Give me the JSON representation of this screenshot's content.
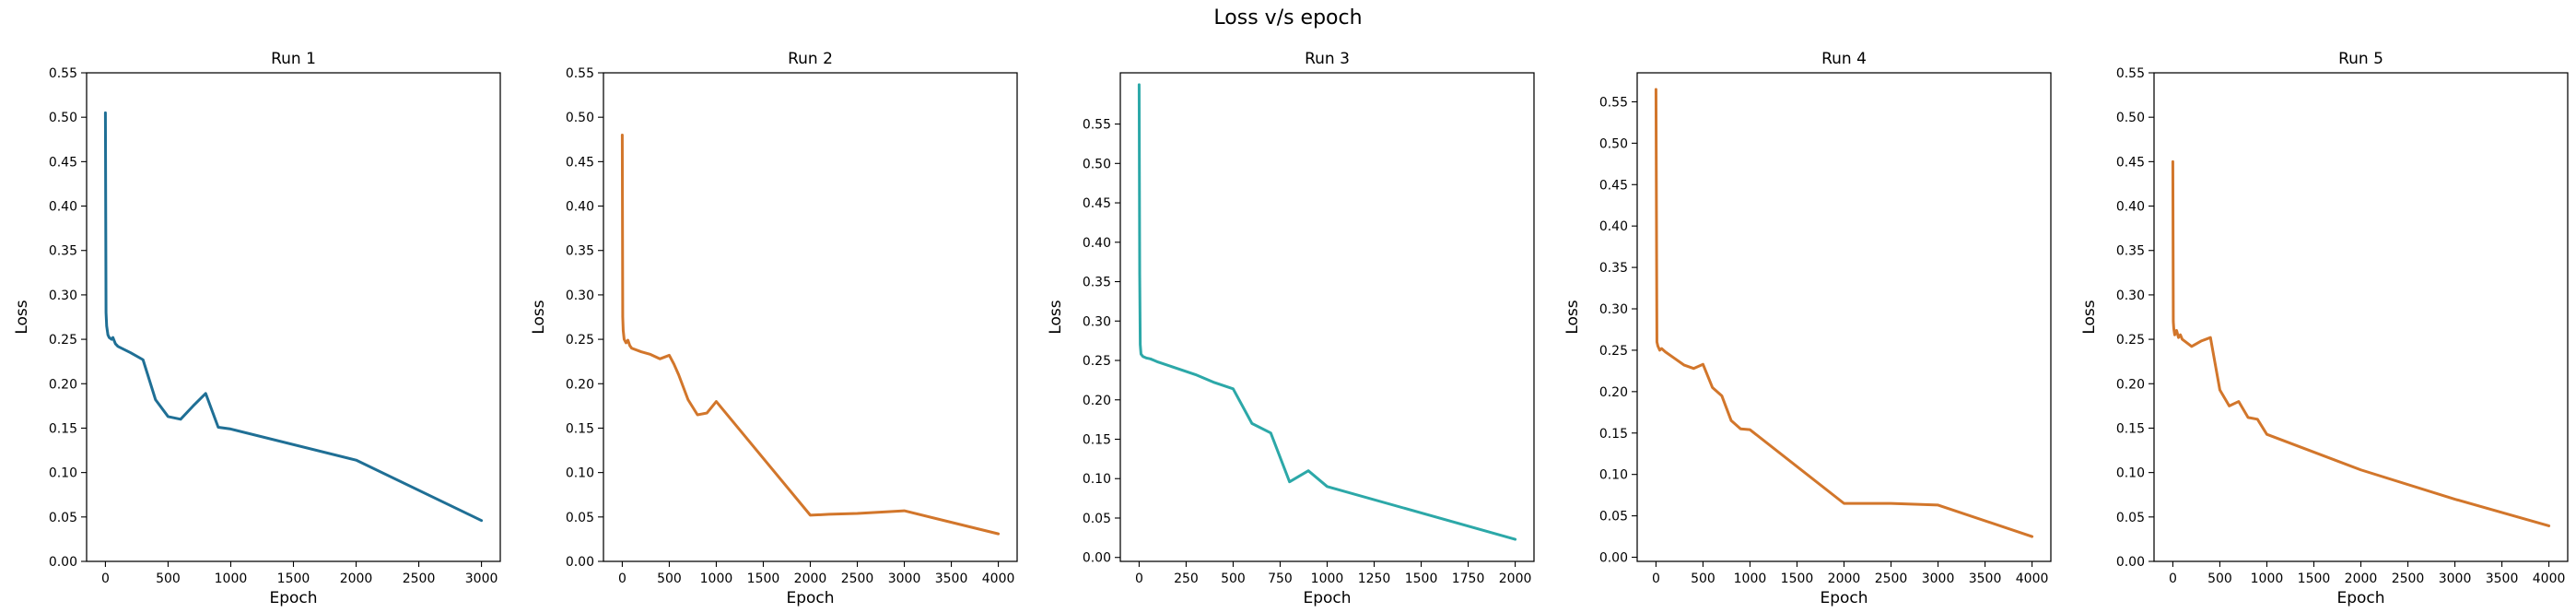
{
  "figure": {
    "title": "Loss v/s epoch"
  },
  "chart_data": [
    {
      "type": "line",
      "title": "Run 1",
      "xlabel": "Epoch",
      "ylabel": "Loss",
      "color": "#1f6f95",
      "xlim": [
        -150,
        3150
      ],
      "ylim": [
        0.0,
        0.55
      ],
      "xticks": [
        0,
        500,
        1000,
        1500,
        2000,
        2500,
        3000
      ],
      "yticks": [
        0.0,
        0.05,
        0.1,
        0.15,
        0.2,
        0.25,
        0.3,
        0.35,
        0.4,
        0.45,
        0.5,
        0.55
      ],
      "xticklabels": [
        "0",
        "500",
        "1000",
        "1500",
        "2000",
        "2500",
        "3000"
      ],
      "yticklabels": [
        "0.00",
        "0.05",
        "0.10",
        "0.15",
        "0.20",
        "0.25",
        "0.30",
        "0.35",
        "0.40",
        "0.45",
        "0.50",
        "0.55"
      ],
      "x": [
        0,
        5,
        10,
        20,
        30,
        50,
        60,
        80,
        100,
        200,
        300,
        400,
        500,
        600,
        700,
        800,
        900,
        1000,
        2000,
        3000
      ],
      "y": [
        0.505,
        0.28,
        0.265,
        0.255,
        0.252,
        0.25,
        0.252,
        0.245,
        0.242,
        0.235,
        0.227,
        0.182,
        0.163,
        0.16,
        0.175,
        0.189,
        0.151,
        0.149,
        0.114,
        0.046
      ]
    },
    {
      "type": "line",
      "title": "Run 2",
      "xlabel": "Epoch",
      "ylabel": "Loss",
      "color": "#d2762b",
      "xlim": [
        -200,
        4200
      ],
      "ylim": [
        0.0,
        0.55
      ],
      "xticks": [
        0,
        500,
        1000,
        1500,
        2000,
        2500,
        3000,
        3500,
        4000
      ],
      "yticks": [
        0.0,
        0.05,
        0.1,
        0.15,
        0.2,
        0.25,
        0.3,
        0.35,
        0.4,
        0.45,
        0.5,
        0.55
      ],
      "xticklabels": [
        "0",
        "500",
        "1000",
        "1500",
        "2000",
        "2500",
        "3000",
        "3500",
        "4000"
      ],
      "yticklabels": [
        "0.00",
        "0.05",
        "0.10",
        "0.15",
        "0.20",
        "0.25",
        "0.30",
        "0.35",
        "0.40",
        "0.45",
        "0.50",
        "0.55"
      ],
      "x": [
        0,
        5,
        10,
        20,
        40,
        60,
        80,
        100,
        200,
        300,
        400,
        500,
        550,
        600,
        700,
        800,
        900,
        1000,
        2000,
        2200,
        2500,
        3000,
        4000
      ],
      "y": [
        0.48,
        0.275,
        0.26,
        0.25,
        0.246,
        0.249,
        0.243,
        0.24,
        0.236,
        0.233,
        0.228,
        0.232,
        0.222,
        0.21,
        0.182,
        0.165,
        0.167,
        0.18,
        0.052,
        0.053,
        0.054,
        0.057,
        0.031
      ]
    },
    {
      "type": "line",
      "title": "Run 3",
      "xlabel": "Epoch",
      "ylabel": "Loss",
      "color": "#2ca8a8",
      "xlim": [
        -100,
        2100
      ],
      "ylim": [
        -0.005,
        0.615
      ],
      "xticks": [
        0,
        250,
        500,
        750,
        1000,
        1250,
        1500,
        1750,
        2000
      ],
      "yticks": [
        0.0,
        0.05,
        0.1,
        0.15,
        0.2,
        0.25,
        0.3,
        0.35,
        0.4,
        0.45,
        0.5,
        0.55
      ],
      "xticklabels": [
        "0",
        "250",
        "500",
        "750",
        "1000",
        "1250",
        "1500",
        "1750",
        "2000"
      ],
      "yticklabels": [
        "0.00",
        "0.05",
        "0.10",
        "0.15",
        "0.20",
        "0.25",
        "0.30",
        "0.35",
        "0.40",
        "0.45",
        "0.50",
        "0.55"
      ],
      "x": [
        0,
        3,
        6,
        10,
        20,
        40,
        60,
        80,
        100,
        200,
        300,
        400,
        500,
        600,
        700,
        800,
        900,
        1000,
        2000
      ],
      "y": [
        0.6,
        0.36,
        0.27,
        0.258,
        0.255,
        0.253,
        0.252,
        0.25,
        0.248,
        0.24,
        0.232,
        0.222,
        0.214,
        0.17,
        0.158,
        0.096,
        0.11,
        0.09,
        0.023
      ]
    },
    {
      "type": "line",
      "title": "Run 4",
      "xlabel": "Epoch",
      "ylabel": "Loss",
      "color": "#d2762b",
      "xlim": [
        -200,
        4200
      ],
      "ylim": [
        -0.005,
        0.585
      ],
      "xticks": [
        0,
        500,
        1000,
        1500,
        2000,
        2500,
        3000,
        3500,
        4000
      ],
      "yticks": [
        0.0,
        0.05,
        0.1,
        0.15,
        0.2,
        0.25,
        0.3,
        0.35,
        0.4,
        0.45,
        0.5,
        0.55
      ],
      "xticklabels": [
        "0",
        "500",
        "1000",
        "1500",
        "2000",
        "2500",
        "3000",
        "3500",
        "4000"
      ],
      "yticklabels": [
        "0.00",
        "0.05",
        "0.10",
        "0.15",
        "0.20",
        "0.25",
        "0.30",
        "0.35",
        "0.40",
        "0.45",
        "0.50",
        "0.55"
      ],
      "x": [
        0,
        5,
        10,
        20,
        40,
        60,
        100,
        200,
        300,
        400,
        500,
        600,
        700,
        800,
        900,
        1000,
        2000,
        2500,
        3000,
        4000
      ],
      "y": [
        0.565,
        0.41,
        0.26,
        0.255,
        0.25,
        0.252,
        0.248,
        0.24,
        0.232,
        0.228,
        0.233,
        0.205,
        0.195,
        0.165,
        0.155,
        0.154,
        0.065,
        0.065,
        0.063,
        0.025
      ]
    },
    {
      "type": "line",
      "title": "Run 5",
      "xlabel": "Epoch",
      "ylabel": "Loss",
      "color": "#d2762b",
      "xlim": [
        -200,
        4200
      ],
      "ylim": [
        0.0,
        0.55
      ],
      "xticks": [
        0,
        500,
        1000,
        1500,
        2000,
        2500,
        3000,
        3500,
        4000
      ],
      "yticks": [
        0.0,
        0.05,
        0.1,
        0.15,
        0.2,
        0.25,
        0.3,
        0.35,
        0.4,
        0.45,
        0.5,
        0.55
      ],
      "xticklabels": [
        "0",
        "500",
        "1000",
        "1500",
        "2000",
        "2500",
        "3000",
        "3500",
        "4000"
      ],
      "yticklabels": [
        "0.00",
        "0.05",
        "0.10",
        "0.15",
        "0.20",
        "0.25",
        "0.30",
        "0.35",
        "0.40",
        "0.45",
        "0.50",
        "0.55"
      ],
      "x": [
        0,
        5,
        10,
        20,
        40,
        60,
        80,
        100,
        200,
        300,
        400,
        500,
        600,
        700,
        800,
        900,
        1000,
        2000,
        3000,
        4000
      ],
      "y": [
        0.45,
        0.27,
        0.262,
        0.255,
        0.26,
        0.252,
        0.255,
        0.25,
        0.242,
        0.248,
        0.252,
        0.193,
        0.175,
        0.18,
        0.162,
        0.16,
        0.143,
        0.103,
        0.07,
        0.04
      ]
    }
  ]
}
